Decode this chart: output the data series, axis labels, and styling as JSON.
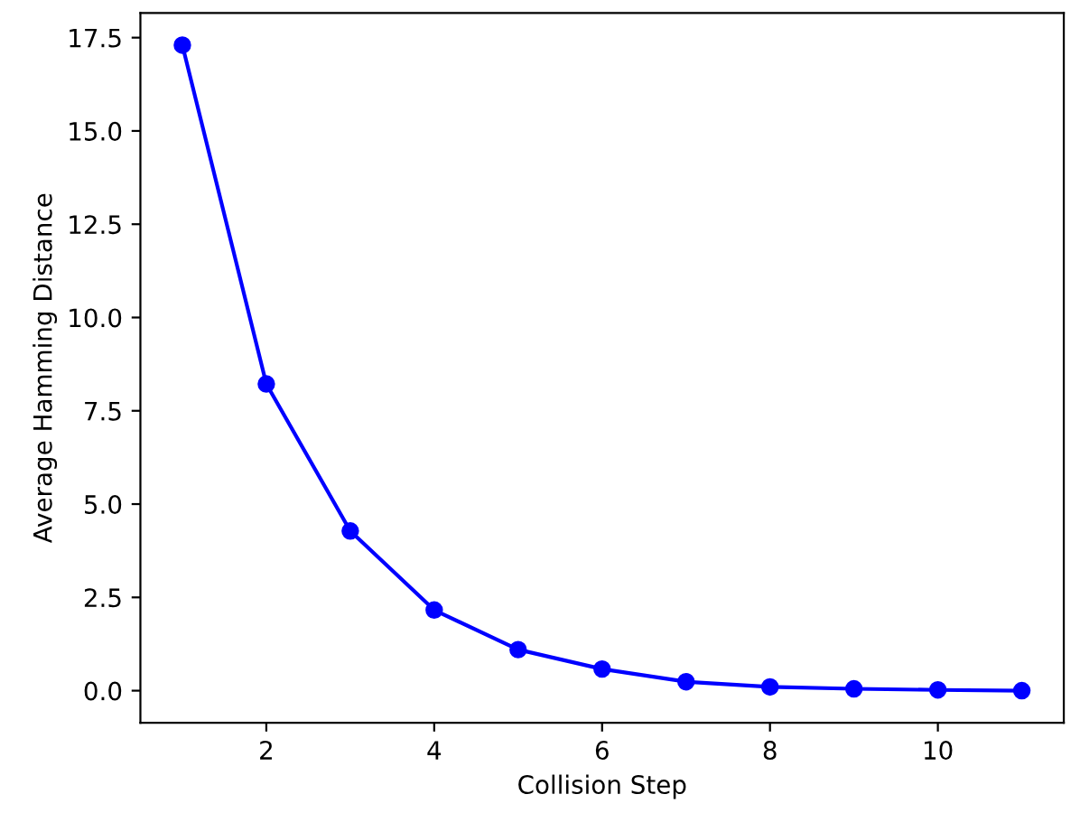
{
  "chart_data": {
    "type": "line",
    "xlabel": "Collision Step",
    "ylabel": "Average Hamming Distance",
    "x": [
      1,
      2,
      3,
      4,
      5,
      6,
      7,
      8,
      9,
      10,
      11
    ],
    "series": [
      {
        "color": "#0000ff",
        "values": [
          17.3,
          8.22,
          4.28,
          2.16,
          1.1,
          0.58,
          0.24,
          0.1,
          0.05,
          0.02,
          0.0
        ]
      }
    ],
    "xlim": [
      0.5,
      11.5
    ],
    "ylim": [
      -0.86,
      18.16
    ],
    "xticks": [
      2,
      4,
      6,
      8,
      10
    ],
    "yticks": [
      {
        "value": 0,
        "label": "0.0"
      },
      {
        "value": 2.5,
        "label": "2.5"
      },
      {
        "value": 5,
        "label": "5.0"
      },
      {
        "value": 7.5,
        "label": "7.5"
      },
      {
        "value": 10,
        "label": "10.0"
      },
      {
        "value": 12.5,
        "label": "12.5"
      },
      {
        "value": 15,
        "label": "15.0"
      },
      {
        "value": 17.5,
        "label": "17.5"
      }
    ],
    "marker": "circle",
    "line_style": "solid",
    "grid": false,
    "legend": false
  }
}
